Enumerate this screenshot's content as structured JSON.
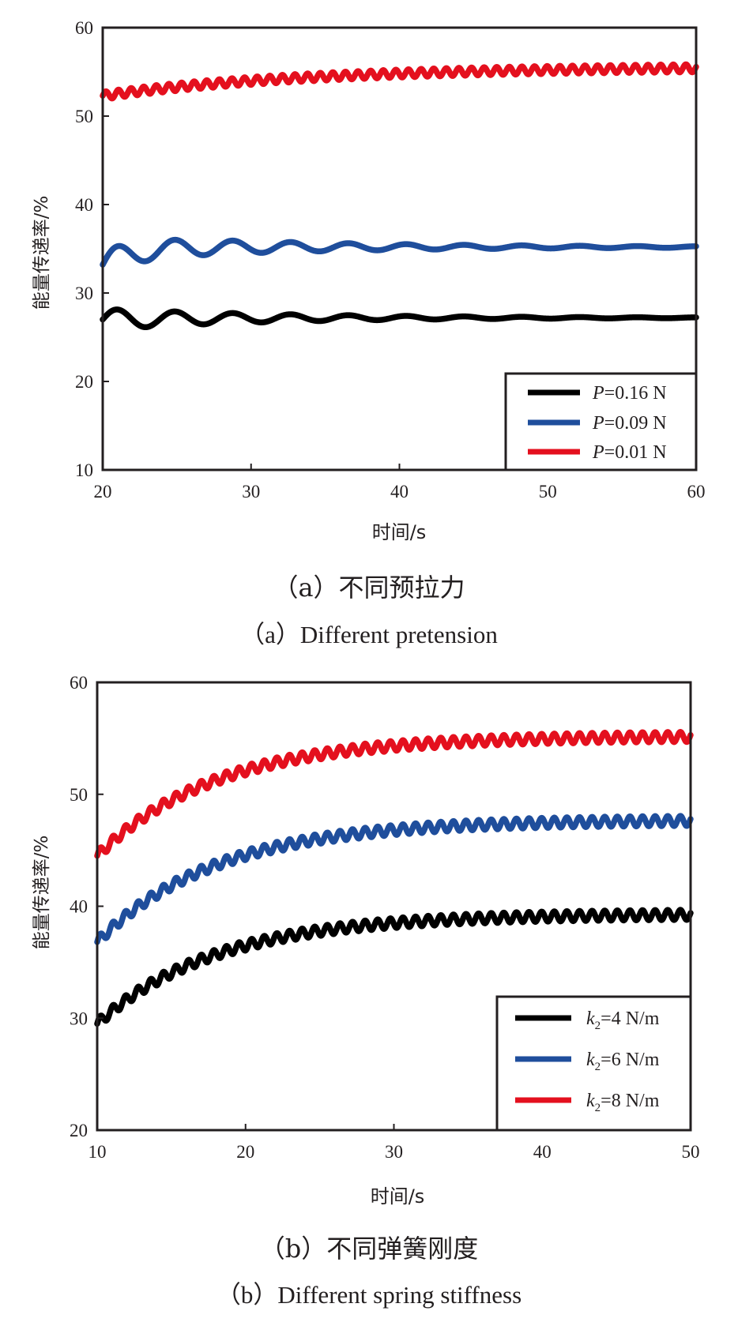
{
  "chart_data": [
    {
      "type": "line",
      "caption_cn": "（a）不同预拉力",
      "caption_en": "（a）Different pretension",
      "xlabel": "时间/s",
      "ylabel": "能量传递率/%",
      "xlim": [
        20,
        60
      ],
      "ylim": [
        10,
        60
      ],
      "xticks": [
        20,
        30,
        40,
        50,
        60
      ],
      "yticks": [
        10,
        20,
        30,
        40,
        50,
        60
      ],
      "legend_position": "bottom-right",
      "series": [
        {
          "name": "P=0.16 N",
          "prefix": "P",
          "suffix": "=0.16 N",
          "color": "#000000",
          "start": 27.0,
          "final": 27.2,
          "tau": 6,
          "osc_amp": 1.2,
          "osc_decay": 12,
          "period": 3.9,
          "ripple": 0.0,
          "x": [
            20,
            25,
            30,
            35,
            40,
            45,
            50,
            55,
            60
          ],
          "values": [
            27.0,
            27.9,
            27.5,
            27.0,
            27.3,
            27.2,
            27.3,
            27.2,
            27.2
          ]
        },
        {
          "name": "P=0.09 N",
          "prefix": "P",
          "suffix": "=0.09 N",
          "color": "#1f4e9c",
          "start": 33.2,
          "final": 35.2,
          "tau": 2,
          "osc_amp": 1.4,
          "osc_decay": 14,
          "period": 3.9,
          "ripple": 0.0,
          "x": [
            20,
            25,
            30,
            35,
            40,
            45,
            50,
            55,
            60
          ],
          "values": [
            33.2,
            34.5,
            35.3,
            35.0,
            35.2,
            35.1,
            35.2,
            35.1,
            35.2
          ]
        },
        {
          "name": "P=0.01 N",
          "prefix": "P",
          "suffix": "=0.01 N",
          "color": "#e4101e",
          "start": 52.3,
          "final": 55.6,
          "tau": 14,
          "osc_amp": 0.0,
          "osc_decay": 10,
          "period": 1.0,
          "ripple": 0.45,
          "x": [
            20,
            25,
            30,
            35,
            40,
            45,
            50,
            55,
            60
          ],
          "values": [
            52.3,
            53.4,
            54.0,
            54.5,
            54.8,
            55.0,
            55.1,
            55.2,
            55.4
          ]
        }
      ]
    },
    {
      "type": "line",
      "caption_cn": "（b）不同弹簧刚度",
      "caption_en": "（b）Different spring stiffness",
      "xlabel": "时间/s",
      "ylabel": "能量传递率/%",
      "xlim": [
        10,
        50
      ],
      "ylim": [
        20,
        60
      ],
      "xticks": [
        10,
        20,
        30,
        40,
        50
      ],
      "yticks": [
        20,
        30,
        40,
        50,
        60
      ],
      "legend_position": "bottom-right",
      "series": [
        {
          "name": "k2=4 N/m",
          "prefix": "k",
          "sub": "2",
          "suffix": "=4 N/m",
          "color": "#000000",
          "start": 29.5,
          "final": 39.3,
          "tau": 8,
          "osc_amp": 0.0,
          "osc_decay": 10,
          "period": 1.0,
          "ripple": 0.45,
          "x": [
            10,
            15,
            20,
            25,
            30,
            35,
            40,
            45,
            50
          ],
          "values": [
            29.5,
            35.0,
            37.1,
            38.0,
            38.6,
            38.9,
            39.1,
            39.2,
            39.3
          ]
        },
        {
          "name": "k2=6 N/m",
          "prefix": "k",
          "sub": "2",
          "suffix": "=6 N/m",
          "color": "#1f4e9c",
          "start": 36.8,
          "final": 47.7,
          "tau": 8,
          "osc_amp": 0.0,
          "osc_decay": 10,
          "period": 1.0,
          "ripple": 0.45,
          "x": [
            10,
            15,
            20,
            25,
            30,
            35,
            40,
            45,
            50
          ],
          "values": [
            36.8,
            43.0,
            45.2,
            46.2,
            46.8,
            47.2,
            47.4,
            47.6,
            47.7
          ]
        },
        {
          "name": "k2=8 N/m",
          "prefix": "k",
          "sub": "2",
          "suffix": "=8 N/m",
          "color": "#e4101e",
          "start": 44.5,
          "final": 55.2,
          "tau": 8,
          "osc_amp": 0.0,
          "osc_decay": 10,
          "period": 1.0,
          "ripple": 0.45,
          "x": [
            10,
            15,
            20,
            25,
            30,
            35,
            40,
            45,
            50
          ],
          "values": [
            44.5,
            50.5,
            52.7,
            53.8,
            54.4,
            54.7,
            54.9,
            55.1,
            55.2
          ]
        }
      ]
    }
  ]
}
